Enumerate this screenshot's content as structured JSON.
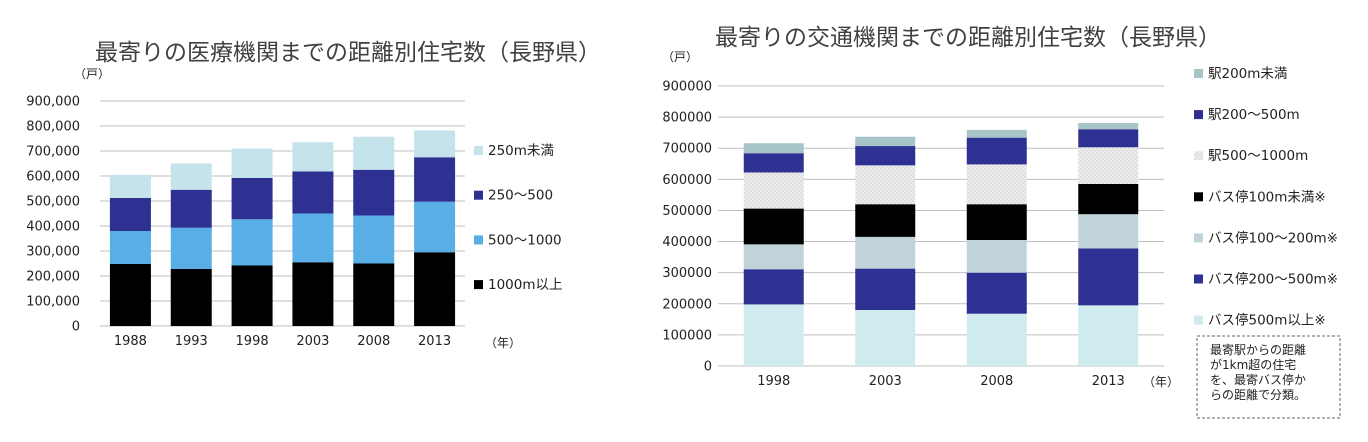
{
  "chart_data": [
    {
      "type": "bar",
      "stacked": true,
      "title": "最寄りの医療機関までの距離別住宅数（長野県）",
      "ylabel": "（戸）",
      "xunit": "（年）",
      "categories": [
        "1988",
        "1993",
        "1998",
        "2003",
        "2008",
        "2013"
      ],
      "ylim": [
        0,
        900000
      ],
      "yticks": [
        "0",
        "100,000",
        "200,000",
        "300,000",
        "400,000",
        "500,000",
        "600,000",
        "700,000",
        "800,000",
        "900,000"
      ],
      "grid": true,
      "legend_position": "right",
      "series": [
        {
          "name": "1000m以上",
          "color": "#000000",
          "values": [
            248000,
            228000,
            242000,
            255000,
            250000,
            295000
          ]
        },
        {
          "name": "500～1000",
          "color": "#5aaee6",
          "values": [
            132000,
            165000,
            185000,
            195000,
            192000,
            202000
          ]
        },
        {
          "name": "250～500",
          "color": "#2e3192",
          "values": [
            132000,
            152000,
            165000,
            168000,
            183000,
            178000
          ]
        },
        {
          "name": "250m未満",
          "color": "#c4e3ea",
          "values": [
            93000,
            105000,
            118000,
            117000,
            132000,
            107000
          ]
        }
      ]
    },
    {
      "type": "bar",
      "stacked": true,
      "title": "最寄りの交通機関までの距離別住宅数（長野県）",
      "ylabel": "（戸）",
      "xunit": "（年）",
      "categories": [
        "1998",
        "2003",
        "2008",
        "2013"
      ],
      "ylim": [
        0,
        900000
      ],
      "yticks": [
        "0",
        "100000",
        "200000",
        "300000",
        "400000",
        "500000",
        "600000",
        "700000",
        "800000",
        "900000"
      ],
      "grid": true,
      "legend_position": "right",
      "series": [
        {
          "name": "バス停500m以上※",
          "color": "#d0ebee",
          "values": [
            198000,
            180000,
            168000,
            195000
          ]
        },
        {
          "name": "バス停200～500m※",
          "color": "#2e3192",
          "values": [
            113000,
            133000,
            132000,
            183000
          ]
        },
        {
          "name": "バス停100～200m※",
          "color": "#bfd3d8",
          "values": [
            80000,
            102000,
            105000,
            110000
          ]
        },
        {
          "name": "バス停100m未満※",
          "color": "#000000",
          "values": [
            115000,
            105000,
            115000,
            97000
          ]
        },
        {
          "name": "駅500～1000m",
          "color": "#e6e6e6",
          "values": [
            116000,
            125000,
            128000,
            118000
          ]
        },
        {
          "name": "駅200～500m",
          "color": "#2e3192",
          "values": [
            62000,
            62000,
            86000,
            58000
          ]
        },
        {
          "name": "駅200m未満",
          "color": "#a7c4c9",
          "values": [
            32000,
            30000,
            25000,
            20000
          ]
        }
      ],
      "note": [
        "最寄駅からの距離",
        "が1km超の住宅",
        "を、最寄バス停か",
        "らの距離で分類。"
      ]
    }
  ]
}
